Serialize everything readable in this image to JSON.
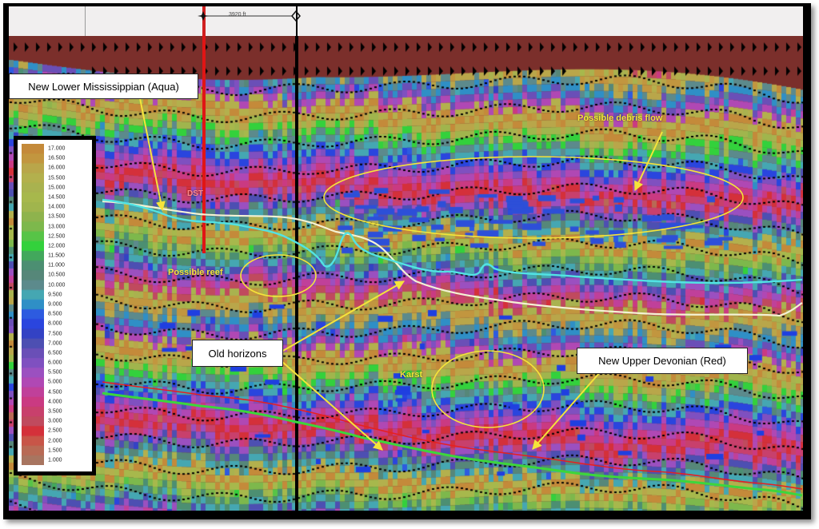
{
  "scale_bar": {
    "label": "3920 ft"
  },
  "callouts": {
    "lower_mississippian": "New Lower Mississippian (Aqua)",
    "old_horizons": "Old horizons",
    "upper_devonian": "New Upper Devonian (Red)"
  },
  "annotations": {
    "debris_flow": "Possible debris flow",
    "reef": "Possible reef",
    "karst": "Karst",
    "dst": "DST"
  },
  "legend": {
    "values": [
      "17.000",
      "16.500",
      "16.000",
      "15.500",
      "15.000",
      "14.500",
      "14.000",
      "13.500",
      "13.000",
      "12.500",
      "12.000",
      "11.500",
      "11.000",
      "10.500",
      "10.000",
      "9.500",
      "9.000",
      "8.500",
      "8.000",
      "7.500",
      "7.000",
      "6.500",
      "6.000",
      "5.500",
      "5.000",
      "4.500",
      "4.000",
      "3.500",
      "3.000",
      "2.500",
      "2.000",
      "1.500",
      "1.000"
    ],
    "colors": [
      "#c48a3a",
      "#c2963f",
      "#b9a64a",
      "#b3b04d",
      "#a9b24f",
      "#a7b84c",
      "#a0b54d",
      "#8eb34d",
      "#7db84c",
      "#57c447",
      "#33d13c",
      "#42a85c",
      "#4c8f72",
      "#568779",
      "#5c8a8c",
      "#45a7b2",
      "#2f8fc6",
      "#2d5be0",
      "#2a45de",
      "#3342c4",
      "#4d4fb2",
      "#6a4fb7",
      "#7f50c0",
      "#9b50c0",
      "#b048b4",
      "#c0409a",
      "#ca3a82",
      "#c8406c",
      "#c04a5e",
      "#d4303a",
      "#c85548",
      "#b86a55",
      "#a87560"
    ]
  },
  "colors": {
    "background": "#7b2f2b",
    "aqua_horizon": "#52e3e3",
    "old_horizon": "#f4f2d4",
    "red_horizon": "#e62020",
    "green_horizon": "#3cd63c",
    "annotation_yellow": "#f5e43a"
  }
}
